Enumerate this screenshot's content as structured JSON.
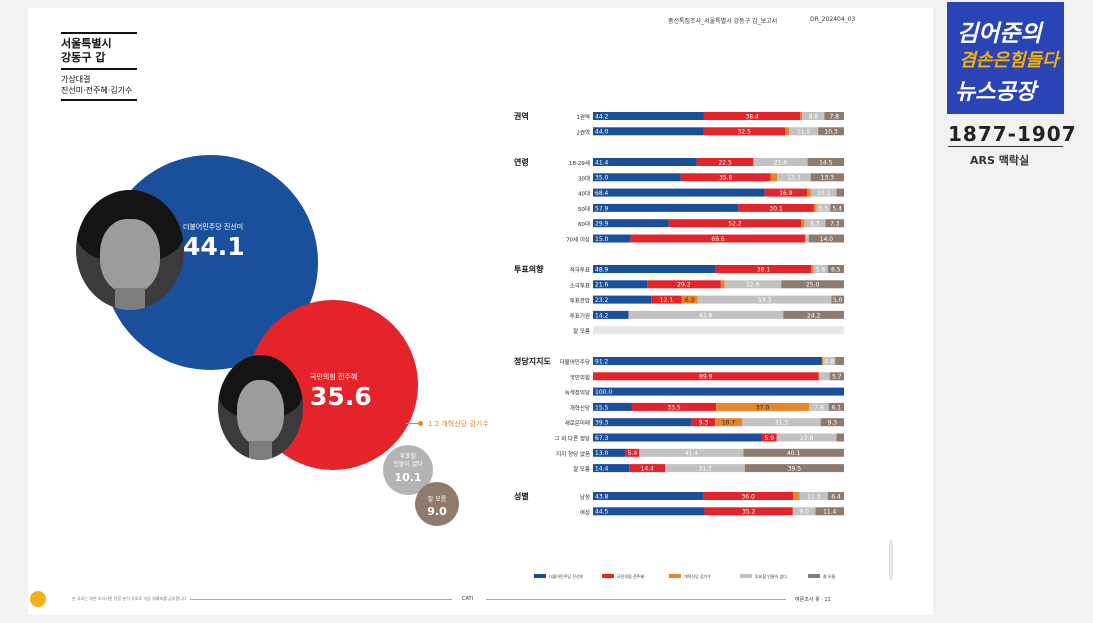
{
  "header": {
    "report_title": "총선특집조사_서울특별시 강동구 갑_보고서",
    "report_code": "DR_202404_03"
  },
  "district": {
    "line1": "서울특별시",
    "line2": "강동구 갑",
    "sub1": "가상대결",
    "sub2": "진선미·전주혜·김기수"
  },
  "candidates": {
    "c1": {
      "label": "더불어민주당 진선미",
      "value": "44.1"
    },
    "c2": {
      "label": "국민의힘 전주혜",
      "value": "35.6"
    },
    "c3": {
      "label": "1.2  개혁신당 김기수"
    },
    "none": {
      "label1": "투표할",
      "label2": "인물이 없다",
      "value": "10.1"
    },
    "dk": {
      "label": "잘 모름",
      "value": "9.0"
    }
  },
  "colors": {
    "blue": "#1a4f9c",
    "red": "#e4232a",
    "orange": "#e8842a",
    "gray": "#c2c2c2",
    "brown": "#8f7b6e",
    "empty": "#e8e8e8"
  },
  "chart_data": {
    "type": "bar",
    "orientation": "horizontal-stacked-100",
    "legend": [
      "더불어민주당 진선미",
      "국민의힘 전주혜",
      "개혁신당 김기수",
      "투표할 인물이 없다",
      "잘 모름"
    ],
    "legend_position": "bottom",
    "groups": [
      {
        "name": "권역",
        "rows": [
          {
            "label": "1권역",
            "values": [
              44.2,
              38.4,
              0.8,
              8.8,
              7.8
            ]
          },
          {
            "label": "2권역",
            "values": [
              44.0,
              32.5,
              1.7,
              11.5,
              10.3
            ]
          }
        ]
      },
      {
        "name": "연령",
        "rows": [
          {
            "label": "18-29세",
            "values": [
              41.4,
              22.5,
              0.0,
              21.6,
              14.5
            ]
          },
          {
            "label": "30대",
            "values": [
              35.0,
              35.8,
              2.6,
              13.3,
              13.3
            ]
          },
          {
            "label": "40대",
            "values": [
              68.4,
              16.9,
              1.5,
              10.2,
              3.0
            ]
          },
          {
            "label": "50대",
            "values": [
              57.9,
              30.1,
              1.1,
              5.5,
              5.4
            ]
          },
          {
            "label": "60대",
            "values": [
              29.9,
              52.2,
              1.3,
              8.3,
              7.3
            ]
          },
          {
            "label": "70세 이상",
            "values": [
              15.0,
              69.6,
              0.0,
              1.4,
              14.0
            ]
          }
        ]
      },
      {
        "name": "투표의향",
        "rows": [
          {
            "label": "적극투표",
            "values": [
              48.9,
              38.1,
              1.0,
              5.6,
              6.5
            ]
          },
          {
            "label": "소극투표",
            "values": [
              21.6,
              29.2,
              1.6,
              22.6,
              25.0
            ]
          },
          {
            "label": "투표관망",
            "values": [
              23.2,
              12.1,
              6.3,
              53.3,
              5.0
            ]
          },
          {
            "label": "투표기권",
            "values": [
              14.2,
              0.0,
              0.0,
              61.6,
              24.2
            ]
          },
          {
            "label": "잘 모름",
            "values": [
              0.0,
              0.0,
              0.0,
              0.0,
              0.0
            ]
          }
        ]
      },
      {
        "name": "정당지지도",
        "rows": [
          {
            "label": "더불어민주당",
            "values": [
              91.2,
              0.0,
              0.5,
              4.8,
              3.5
            ]
          },
          {
            "label": "국민의힘",
            "values": [
              0.0,
              89.9,
              0.4,
              4.0,
              5.7
            ]
          },
          {
            "label": "녹색정의당",
            "values": [
              100.0,
              0.0,
              0.0,
              0.0,
              0.0
            ]
          },
          {
            "label": "개혁신당",
            "values": [
              15.5,
              33.5,
              37.0,
              7.8,
              6.1
            ]
          },
          {
            "label": "새로운미래",
            "values": [
              39.3,
              9.3,
              10.7,
              31.3,
              9.3
            ]
          },
          {
            "label": "그 외 다른 정당",
            "values": [
              67.3,
              5.9,
              0.0,
              23.8,
              3.0
            ]
          },
          {
            "label": "지지 정당 없음",
            "values": [
              13.0,
              5.4,
              0.1,
              41.4,
              40.1
            ]
          },
          {
            "label": "잘 모름",
            "values": [
              14.4,
              14.4,
              0.0,
              31.7,
              39.5
            ]
          }
        ]
      },
      {
        "name": "성별",
        "rows": [
          {
            "label": "남성",
            "values": [
              43.8,
              36.0,
              2.5,
              11.3,
              6.4
            ]
          },
          {
            "label": "여성",
            "values": [
              44.5,
              35.2,
              0.0,
              9.0,
              11.4
            ]
          }
        ]
      }
    ]
  },
  "footer": {
    "note": "본 자료는 여론 조사기관 연합 분석 자료로 가공 재배포를 금지합니다",
    "method": "CATI",
    "page": "여론조사 꽃 · 11"
  },
  "broadcast": {
    "line1": "김어준의",
    "line2": "겸손은힘들다",
    "line3": "뉴스공장",
    "sample_no": "1877-1907",
    "method": "ARS 맥락실"
  }
}
